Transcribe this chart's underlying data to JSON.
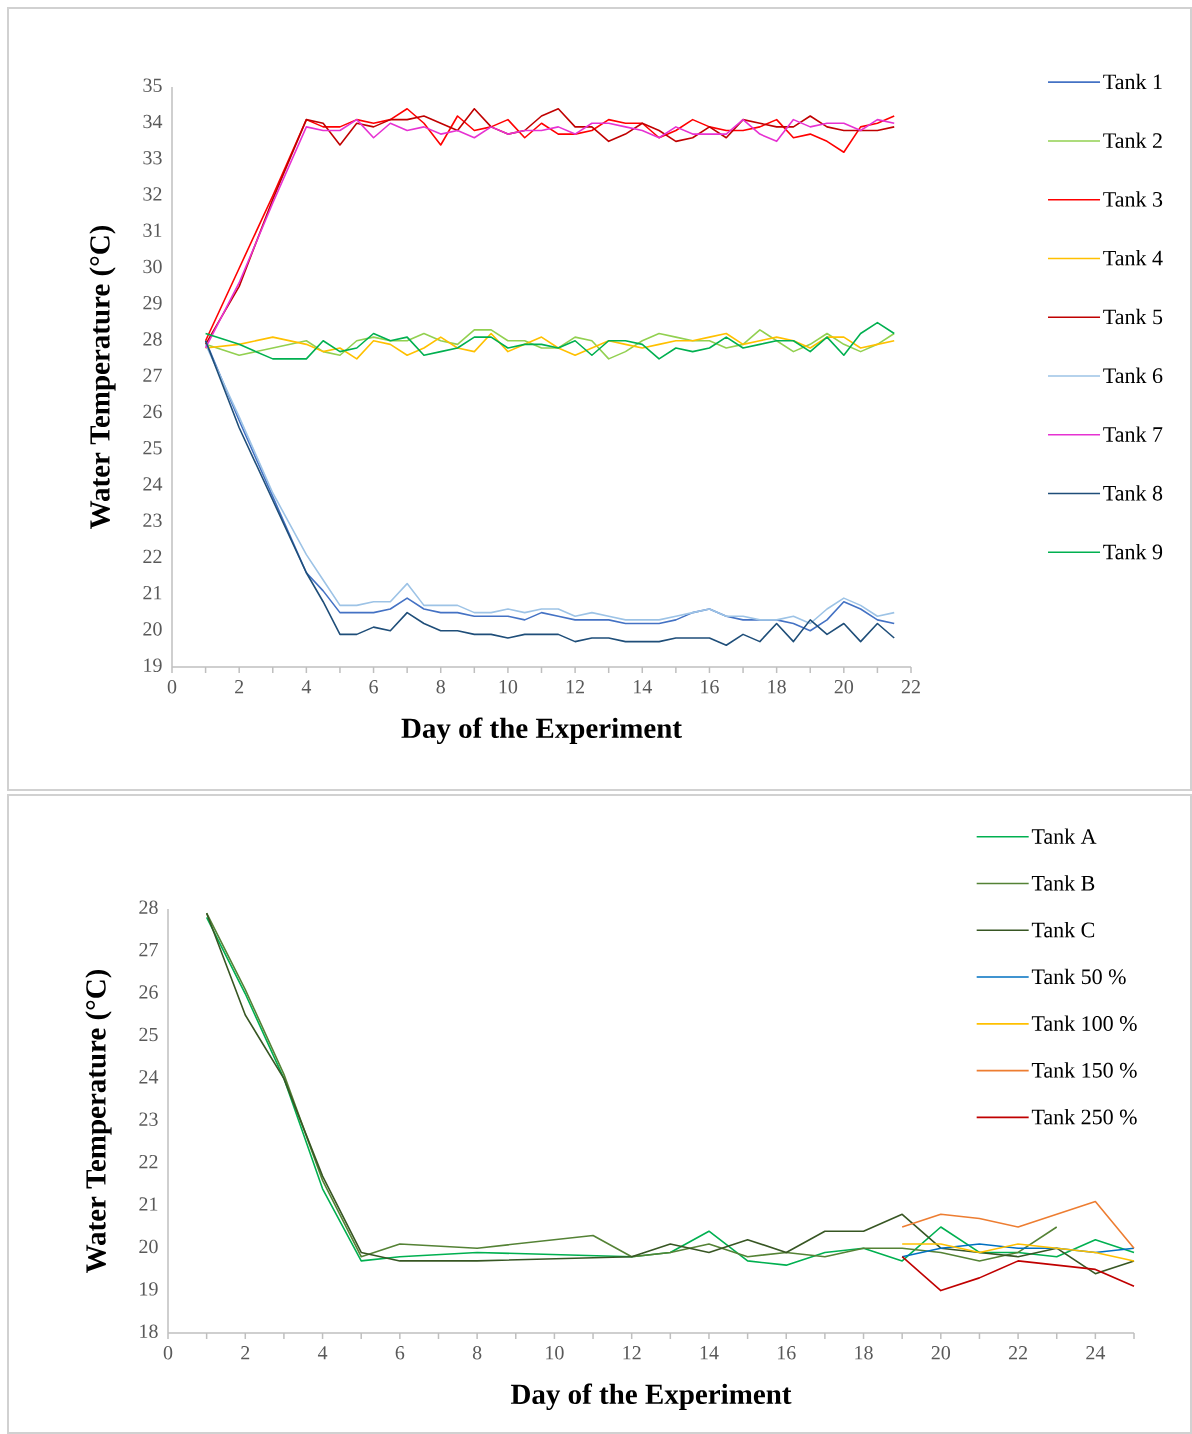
{
  "chart_data": [
    {
      "type": "line",
      "xlabel": "Day of the Experiment",
      "ylabel": "Water Temperature (°C)",
      "legend": "right",
      "xlim": [
        0,
        22
      ],
      "ylim": [
        19,
        35
      ],
      "xticks": [
        0,
        {
          "value": 1,
          "label": null
        },
        2,
        {
          "value": 3,
          "label": null
        },
        4,
        {
          "value": 5,
          "label": null
        },
        6,
        {
          "value": 7,
          "label": null
        },
        8,
        {
          "value": 9,
          "label": null
        },
        10,
        {
          "value": 11,
          "label": null
        },
        12,
        {
          "value": 13,
          "label": null
        },
        14,
        {
          "value": 15,
          "label": null
        },
        16,
        {
          "value": 17,
          "label": null
        },
        18,
        {
          "value": 19,
          "label": null
        },
        20,
        {
          "value": 21,
          "label": null
        },
        22
      ],
      "yticks": [
        19,
        20,
        21,
        22,
        23,
        24,
        25,
        26,
        27,
        28,
        29,
        30,
        31,
        32,
        33,
        34,
        35
      ],
      "x": [
        1,
        2,
        3,
        4,
        4.5,
        5,
        5.5,
        6,
        6.5,
        7,
        7.5,
        8,
        8.5,
        9,
        9.5,
        10,
        10.5,
        11,
        11.5,
        12,
        12.5,
        13,
        13.5,
        14,
        14.5,
        15,
        15.5,
        16,
        16.5,
        17,
        17.5,
        18,
        18.5,
        19,
        19.5,
        20,
        20.5,
        21,
        21.5
      ],
      "series": [
        {
          "name": "Tank 1",
          "color": "#4472c4",
          "values": [
            28.0,
            25.8,
            23.7,
            21.6,
            21.1,
            20.5,
            20.5,
            20.5,
            20.6,
            20.9,
            20.6,
            20.5,
            20.5,
            20.4,
            20.4,
            20.4,
            20.3,
            20.5,
            20.4,
            20.3,
            20.3,
            20.3,
            20.2,
            20.2,
            20.2,
            20.3,
            20.5,
            20.6,
            20.4,
            20.3,
            20.3,
            20.3,
            20.2,
            20.0,
            20.3,
            20.8,
            20.6,
            20.3,
            20.2
          ]
        },
        {
          "name": "Tank 2",
          "color": "#92d050",
          "values": [
            27.9,
            27.6,
            27.8,
            28.0,
            27.7,
            27.6,
            28.0,
            28.1,
            28.0,
            28.0,
            28.2,
            28.0,
            27.9,
            28.3,
            28.3,
            28.0,
            28.0,
            27.8,
            27.8,
            28.1,
            28.0,
            27.5,
            27.7,
            28.0,
            28.2,
            28.1,
            28.0,
            28.0,
            27.8,
            27.9,
            28.3,
            28.0,
            27.7,
            27.9,
            28.2,
            27.9,
            27.7,
            27.9,
            28.2
          ]
        },
        {
          "name": "Tank 3",
          "color": "#ff0000",
          "values": [
            28.0,
            30.0,
            32.0,
            34.1,
            33.9,
            33.9,
            34.1,
            34.0,
            34.1,
            34.4,
            34.0,
            33.4,
            34.2,
            33.8,
            33.9,
            34.1,
            33.6,
            34.0,
            33.7,
            33.7,
            33.8,
            34.1,
            34.0,
            34.0,
            33.6,
            33.8,
            34.1,
            33.9,
            33.8,
            33.8,
            33.9,
            34.1,
            33.6,
            33.7,
            33.5,
            33.2,
            33.9,
            34.0,
            34.2
          ]
        },
        {
          "name": "Tank 4",
          "color": "#ffc000",
          "values": [
            27.8,
            27.9,
            28.1,
            27.9,
            27.7,
            27.8,
            27.5,
            28.0,
            27.9,
            27.6,
            27.8,
            28.1,
            27.8,
            27.7,
            28.2,
            27.7,
            27.9,
            28.1,
            27.8,
            27.6,
            27.8,
            28.0,
            27.9,
            27.8,
            27.9,
            28.0,
            28.0,
            28.1,
            28.2,
            27.9,
            28.0,
            28.1,
            28.0,
            27.8,
            28.1,
            28.1,
            27.8,
            27.9,
            28.0
          ]
        },
        {
          "name": "Tank 5",
          "color": "#c00000",
          "values": [
            27.9,
            29.5,
            31.9,
            34.1,
            34.0,
            33.4,
            34.0,
            33.9,
            34.1,
            34.1,
            34.2,
            34.0,
            33.8,
            34.4,
            33.9,
            33.7,
            33.8,
            34.2,
            34.4,
            33.9,
            33.9,
            33.5,
            33.7,
            34.0,
            33.8,
            33.5,
            33.6,
            33.9,
            33.6,
            34.1,
            34.0,
            33.9,
            33.9,
            34.2,
            33.9,
            33.8,
            33.8,
            33.8,
            33.9
          ]
        },
        {
          "name": "Tank 6",
          "color": "#9dc3e6",
          "values": [
            27.9,
            25.9,
            23.8,
            22.1,
            21.4,
            20.7,
            20.7,
            20.8,
            20.8,
            21.3,
            20.7,
            20.7,
            20.7,
            20.5,
            20.5,
            20.6,
            20.5,
            20.6,
            20.6,
            20.4,
            20.5,
            20.4,
            20.3,
            20.3,
            20.3,
            20.4,
            20.5,
            20.6,
            20.4,
            20.4,
            20.3,
            20.3,
            20.4,
            20.2,
            20.6,
            20.9,
            20.7,
            20.4,
            20.5
          ]
        },
        {
          "name": "Tank 7",
          "color": "#e632d2",
          "values": [
            27.8,
            29.6,
            31.8,
            33.9,
            33.8,
            33.8,
            34.1,
            33.6,
            34.0,
            33.8,
            33.9,
            33.7,
            33.8,
            33.6,
            33.9,
            33.7,
            33.8,
            33.8,
            33.9,
            33.7,
            34.0,
            34.0,
            33.9,
            33.8,
            33.6,
            33.9,
            33.7,
            33.7,
            33.7,
            34.1,
            33.7,
            33.5,
            34.1,
            33.9,
            34.0,
            34.0,
            33.8,
            34.1,
            34.0
          ]
        },
        {
          "name": "Tank 8",
          "color": "#1f4e79",
          "values": [
            28.0,
            25.6,
            23.6,
            21.6,
            20.8,
            19.9,
            19.9,
            20.1,
            20.0,
            20.5,
            20.2,
            20.0,
            20.0,
            19.9,
            19.9,
            19.8,
            19.9,
            19.9,
            19.9,
            19.7,
            19.8,
            19.8,
            19.7,
            19.7,
            19.7,
            19.8,
            19.8,
            19.8,
            19.6,
            19.9,
            19.7,
            20.2,
            19.7,
            20.3,
            19.9,
            20.2,
            19.7,
            20.2,
            19.8
          ]
        },
        {
          "name": "Tank 9",
          "color": "#00b050",
          "values": [
            28.2,
            27.9,
            27.5,
            27.5,
            28.0,
            27.7,
            27.8,
            28.2,
            28.0,
            28.1,
            27.6,
            27.7,
            27.8,
            28.1,
            28.1,
            27.8,
            27.9,
            27.9,
            27.8,
            28.0,
            27.6,
            28.0,
            28.0,
            27.9,
            27.5,
            27.8,
            27.7,
            27.8,
            28.1,
            27.8,
            27.9,
            28.0,
            28.0,
            27.7,
            28.1,
            27.6,
            28.2,
            28.5,
            28.2
          ]
        }
      ]
    },
    {
      "type": "line",
      "xlabel": "Day of the Experiment",
      "ylabel": "Water Temperature (°C)",
      "legend": "top right",
      "xlim": [
        0,
        25
      ],
      "ylim": [
        18,
        28
      ],
      "xticks": [
        0,
        {
          "value": 1,
          "label": null
        },
        2,
        {
          "value": 3,
          "label": null
        },
        4,
        {
          "value": 5,
          "label": null
        },
        6,
        {
          "value": 7,
          "label": null
        },
        8,
        {
          "value": 9,
          "label": null
        },
        10,
        {
          "value": 11,
          "label": null
        },
        12,
        {
          "value": 13,
          "label": null
        },
        14,
        {
          "value": 15,
          "label": null
        },
        16,
        {
          "value": 17,
          "label": null
        },
        18,
        {
          "value": 19,
          "label": null
        },
        20,
        {
          "value": 21,
          "label": null
        },
        22,
        {
          "value": 23,
          "label": null
        },
        24,
        {
          "value": 25,
          "label": null
        }
      ],
      "yticks": [
        18,
        19,
        20,
        21,
        22,
        23,
        24,
        25,
        26,
        27,
        28
      ],
      "series": [
        {
          "name": "Tank A",
          "color": "#00b050",
          "x": [
            1,
            2,
            3,
            4,
            5,
            6,
            8,
            12,
            13,
            14,
            15,
            16,
            17,
            18,
            19,
            20,
            21,
            22,
            23,
            24,
            25
          ],
          "values": [
            27.8,
            26.0,
            24.0,
            21.4,
            19.7,
            19.8,
            19.9,
            19.8,
            19.9,
            20.4,
            19.7,
            19.6,
            19.9,
            20.0,
            19.7,
            20.5,
            19.9,
            19.9,
            19.8,
            20.2,
            19.9
          ]
        },
        {
          "name": "Tank B",
          "color": "#548235",
          "x": [
            1,
            2,
            3,
            4,
            5,
            6,
            8,
            11,
            12,
            13,
            14,
            15,
            16,
            17,
            18,
            19,
            20,
            21,
            22,
            23
          ],
          "values": [
            27.9,
            26.1,
            24.1,
            21.6,
            19.8,
            20.1,
            20.0,
            20.3,
            19.8,
            19.9,
            20.1,
            19.8,
            19.9,
            19.8,
            20.0,
            20.0,
            19.9,
            19.7,
            19.9,
            20.5
          ]
        },
        {
          "name": "Tank C",
          "color": "#375623",
          "x": [
            1,
            2,
            3,
            4,
            5,
            6,
            8,
            12,
            13,
            14,
            15,
            16,
            17,
            18,
            19,
            20,
            21,
            22,
            23,
            24,
            25
          ],
          "values": [
            27.9,
            25.5,
            24.0,
            21.7,
            19.9,
            19.7,
            19.7,
            19.8,
            20.1,
            19.9,
            20.2,
            19.9,
            20.4,
            20.4,
            20.8,
            20.0,
            19.9,
            19.8,
            20.0,
            19.4,
            19.7
          ]
        },
        {
          "name": "Tank 50 %",
          "color": "#0070c0",
          "x": [
            19,
            20,
            21,
            22,
            23,
            24,
            25
          ],
          "values": [
            19.8,
            20.0,
            20.1,
            20.0,
            20.0,
            19.9,
            20.0
          ]
        },
        {
          "name": "Tank 100 %",
          "color": "#ffc000",
          "x": [
            19,
            20,
            21,
            22,
            23,
            24,
            25
          ],
          "values": [
            20.1,
            20.1,
            19.9,
            20.1,
            20.0,
            19.9,
            19.7
          ]
        },
        {
          "name": "Tank 150 %",
          "color": "#ed7d31",
          "x": [
            19,
            20,
            21,
            22,
            23,
            24,
            25
          ],
          "values": [
            20.5,
            20.8,
            20.7,
            20.5,
            20.8,
            21.1,
            20.0
          ]
        },
        {
          "name": "Tank 250 %",
          "color": "#c00000",
          "x": [
            19,
            20,
            21,
            22,
            23,
            24,
            25
          ],
          "values": [
            19.8,
            19.0,
            19.3,
            19.7,
            19.6,
            19.5,
            19.1
          ]
        }
      ]
    }
  ]
}
